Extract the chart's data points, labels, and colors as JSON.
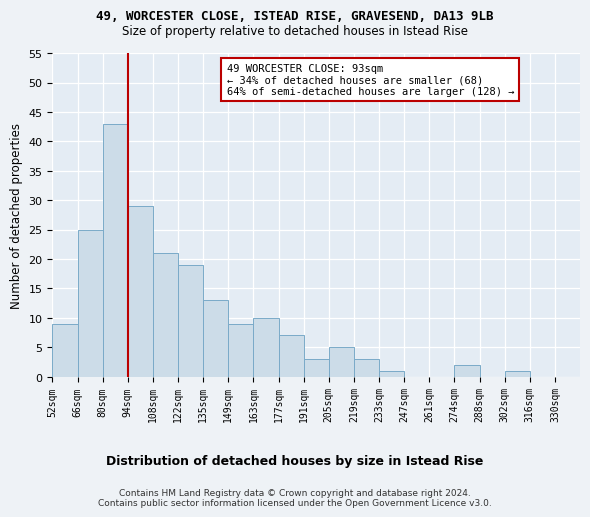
{
  "title": "49, WORCESTER CLOSE, ISTEAD RISE, GRAVESEND, DA13 9LB",
  "subtitle": "Size of property relative to detached houses in Istead Rise",
  "xlabel_bottom": "Distribution of detached houses by size in Istead Rise",
  "ylabel": "Number of detached properties",
  "bins": [
    "52sqm",
    "66sqm",
    "80sqm",
    "94sqm",
    "108sqm",
    "122sqm",
    "135sqm",
    "149sqm",
    "163sqm",
    "177sqm",
    "191sqm",
    "205sqm",
    "219sqm",
    "233sqm",
    "247sqm",
    "261sqm",
    "274sqm",
    "288sqm",
    "302sqm",
    "316sqm",
    "330sqm"
  ],
  "values": [
    9,
    25,
    43,
    29,
    21,
    19,
    13,
    9,
    10,
    7,
    3,
    5,
    3,
    1,
    0,
    0,
    2,
    0,
    1,
    0,
    0
  ],
  "bar_color": "#ccdce8",
  "bar_edge_color": "#7aaac8",
  "marker_color": "#bb0000",
  "annotation_line1": "49 WORCESTER CLOSE: 93sqm",
  "annotation_line2": "← 34% of detached houses are smaller (68)",
  "annotation_line3": "64% of semi-detached houses are larger (128) →",
  "annotation_box_color": "#ffffff",
  "annotation_box_edge": "#bb0000",
  "ylim": [
    0,
    55
  ],
  "yticks": [
    0,
    5,
    10,
    15,
    20,
    25,
    30,
    35,
    40,
    45,
    50,
    55
  ],
  "footer": "Contains HM Land Registry data © Crown copyright and database right 2024.\nContains public sector information licensed under the Open Government Licence v3.0.",
  "bg_color": "#eef2f6",
  "plot_bg_color": "#e4ecf4"
}
